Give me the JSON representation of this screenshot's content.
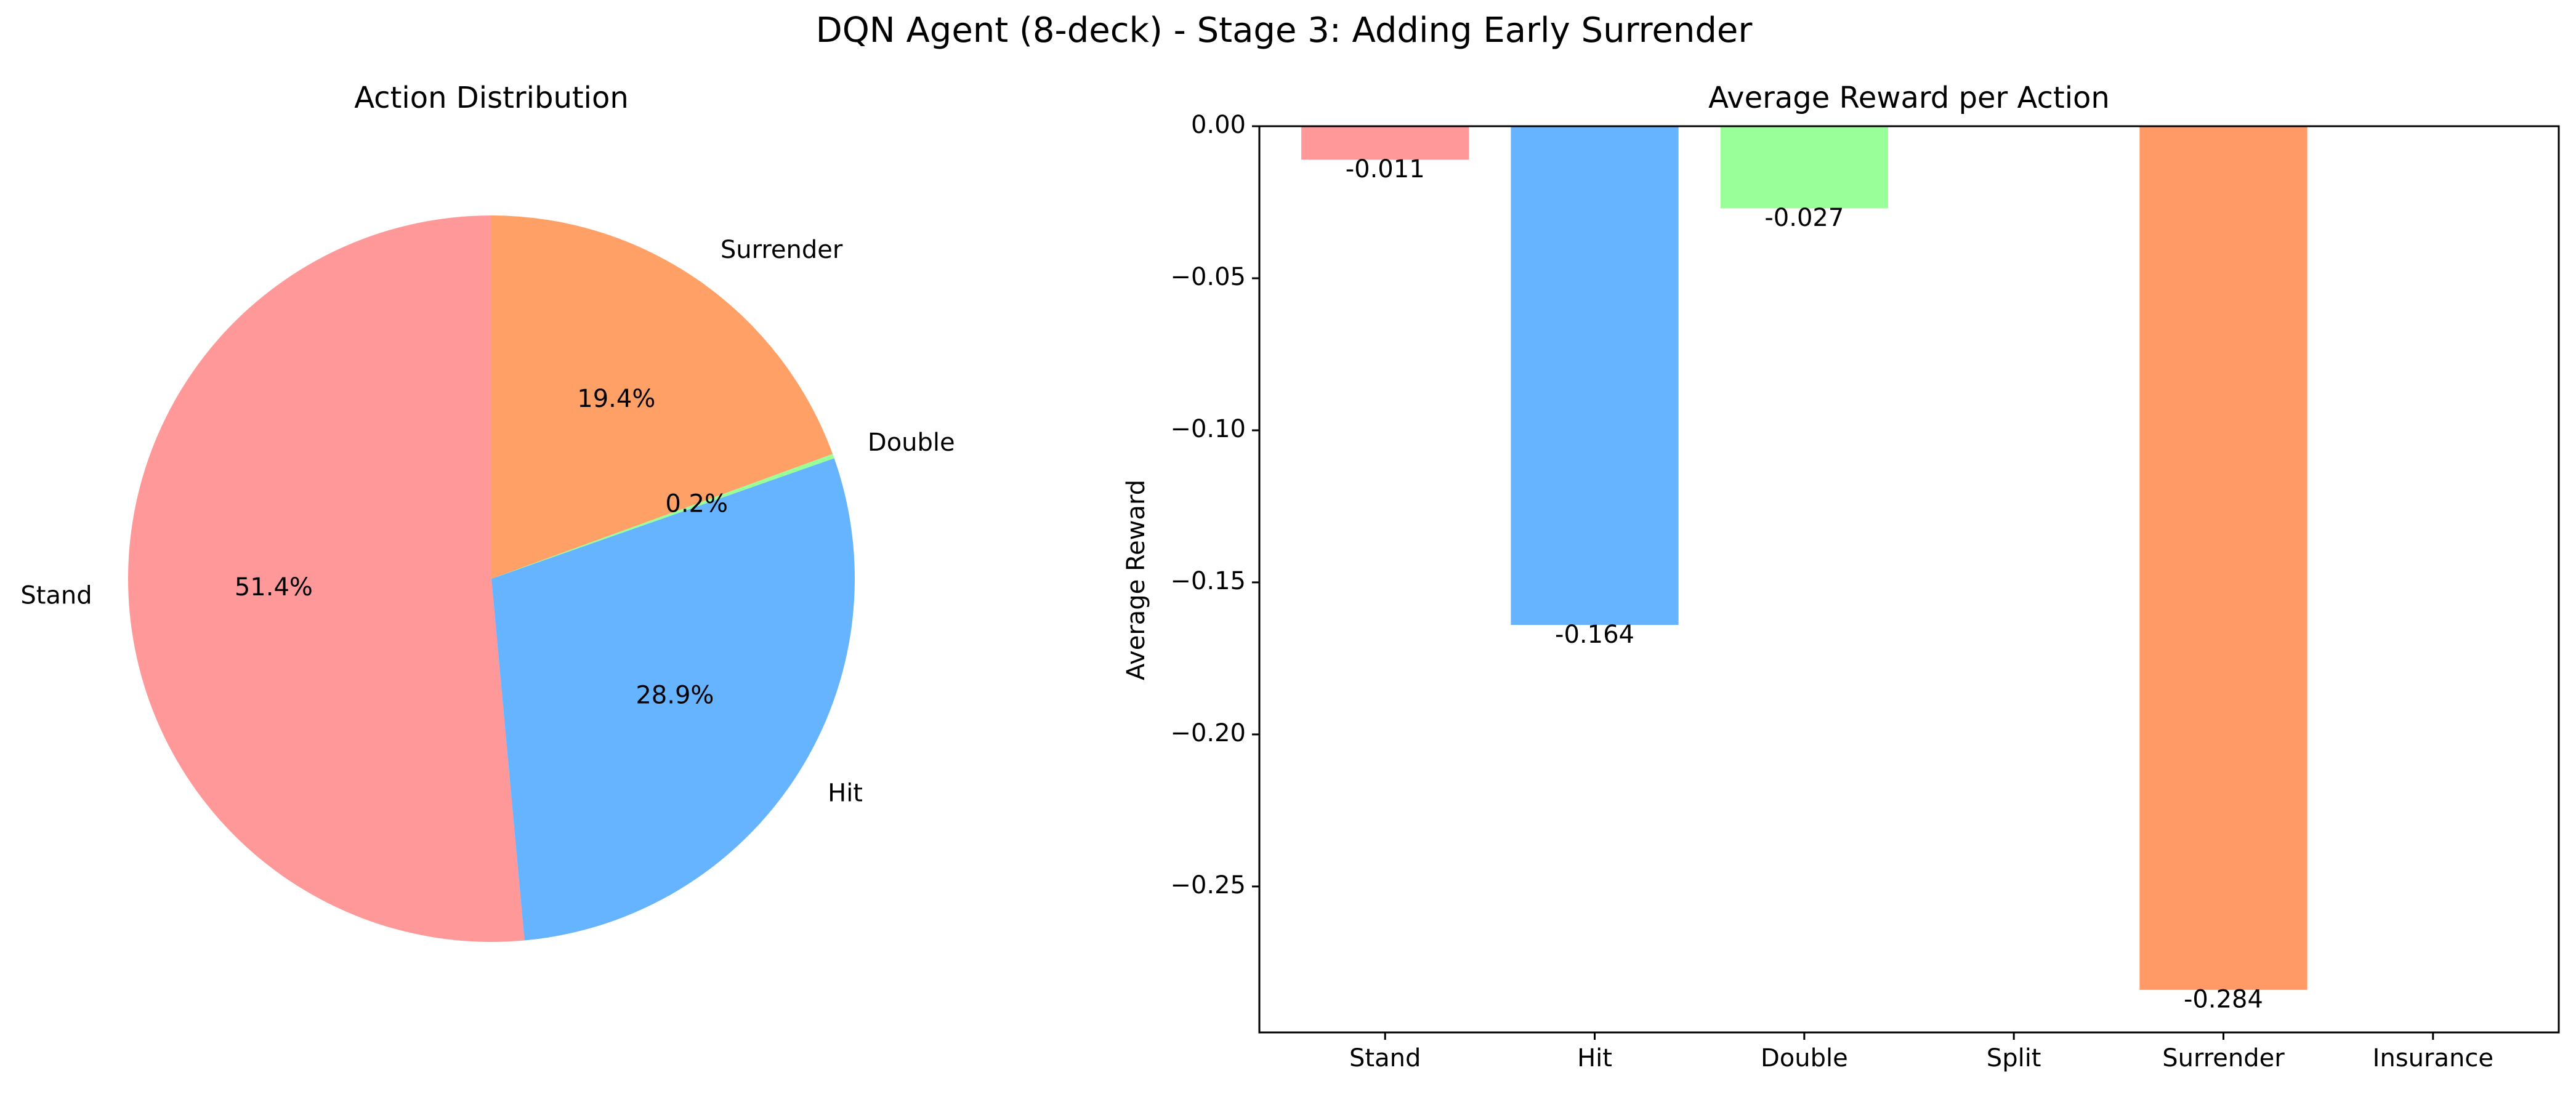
{
  "figure": {
    "suptitle": "DQN Agent (8-deck) - Stage 3: Adding Early Surrender"
  },
  "chart_data": [
    {
      "type": "pie",
      "title": "Action Distribution",
      "start_angle_deg": 90,
      "direction": "counterclockwise",
      "slices": [
        {
          "label": "Stand",
          "value": 51.4,
          "pct_label": "51.4%",
          "color": "#ff9999"
        },
        {
          "label": "Hit",
          "value": 28.9,
          "pct_label": "28.9%",
          "color": "#66b3ff"
        },
        {
          "label": "Double",
          "value": 0.2,
          "pct_label": "0.2%",
          "color": "#99ff99"
        },
        {
          "label": "Surrender",
          "value": 19.4,
          "pct_label": "19.4%",
          "color": "#ffa066"
        }
      ]
    },
    {
      "type": "bar",
      "title": "Average Reward per Action",
      "xlabel": "",
      "ylabel": "Average Reward",
      "ylim": [
        -0.298,
        0.0
      ],
      "yticks": [
        0.0,
        -0.05,
        -0.1,
        -0.15,
        -0.2,
        -0.25
      ],
      "ytick_labels": [
        "0.00",
        "−0.05",
        "−0.10",
        "−0.15",
        "−0.20",
        "−0.25"
      ],
      "grid": false,
      "categories": [
        "Stand",
        "Hit",
        "Double",
        "Split",
        "Surrender",
        "Insurance"
      ],
      "values": [
        -0.011,
        -0.164,
        -0.027,
        null,
        -0.284,
        null
      ],
      "value_labels": [
        "-0.011",
        "-0.164",
        "-0.027",
        "",
        "-0.284",
        ""
      ],
      "colors": [
        "#ff9999",
        "#66b3ff",
        "#99ff99",
        "#ffcc99",
        "#ff9966",
        "#c2c2f0"
      ]
    }
  ]
}
